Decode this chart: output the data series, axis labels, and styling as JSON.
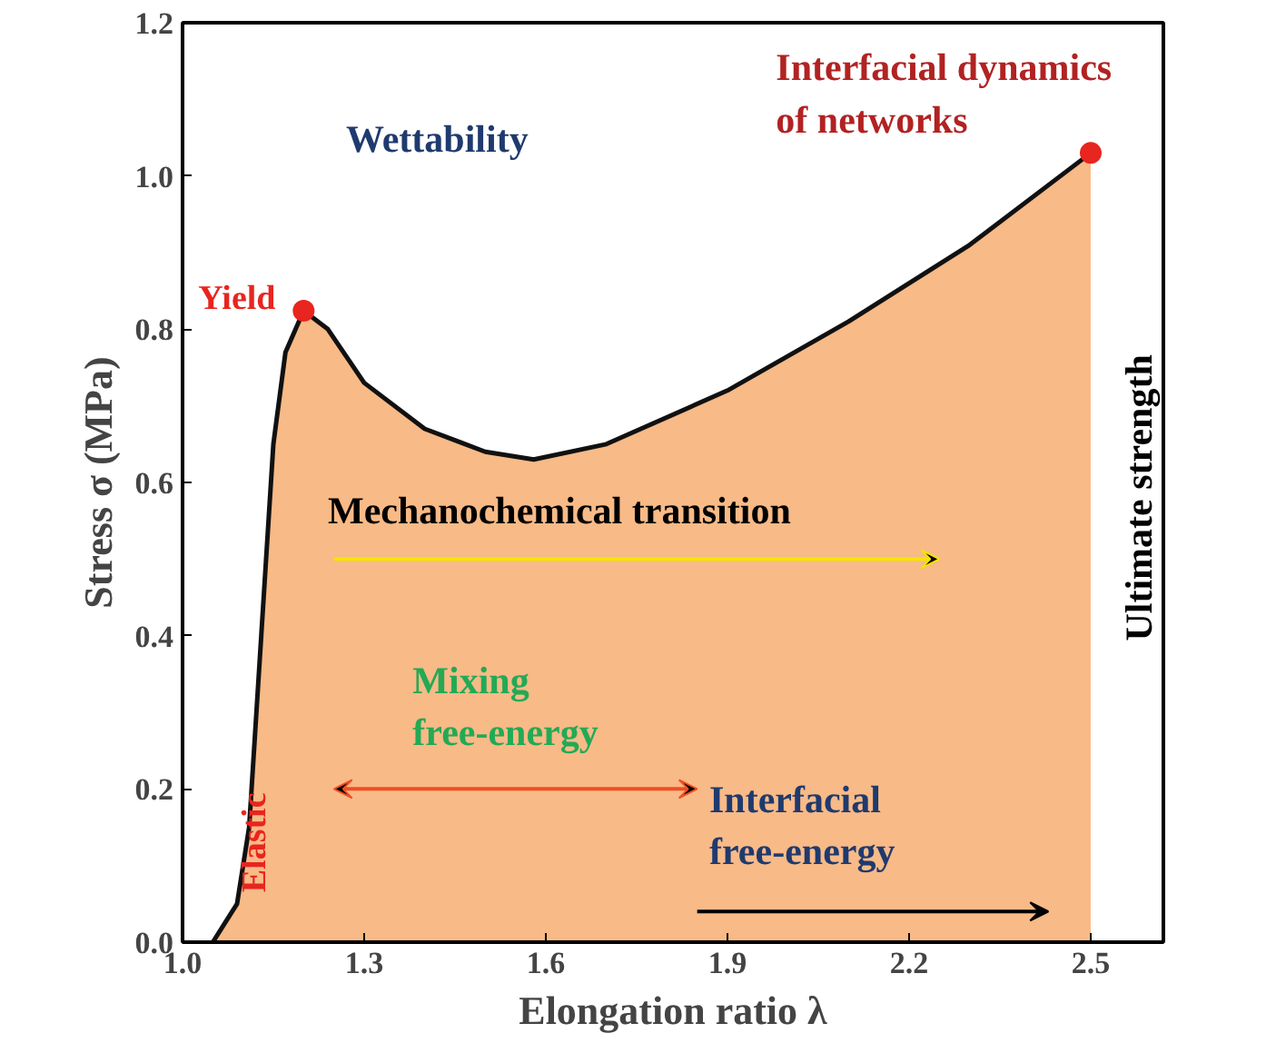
{
  "chart_data": {
    "type": "area",
    "xlabel": "Elongation ratio λ",
    "ylabel": "Stress σ (MPa)",
    "xlim": [
      1.0,
      2.62
    ],
    "ylim": [
      0,
      1.2
    ],
    "xticks": [
      {
        "value": 1.0,
        "label": "1.0"
      },
      1.3,
      1.6,
      1.9,
      2.2,
      2.5
    ],
    "yticks": [
      {
        "value": 0,
        "label": "0.0"
      },
      0.2,
      0.4,
      0.6,
      0.8,
      {
        "value": 1.0,
        "label": "1.0"
      },
      1.2
    ],
    "series": [
      {
        "color": "#f7b27a",
        "x": [
          1.05,
          1.09,
          1.11,
          1.13,
          1.15,
          1.17,
          1.2,
          1.24,
          1.3,
          1.4,
          1.5,
          1.58,
          1.7,
          1.9,
          2.1,
          2.3,
          2.5
        ],
        "values": [
          0,
          0.05,
          0.15,
          0.4,
          0.65,
          0.77,
          0.824,
          0.8,
          0.73,
          0.67,
          0.64,
          0.63,
          0.65,
          0.72,
          0.81,
          0.91,
          1.03
        ]
      },
      {
        "type": "scatter",
        "color": "#e8251f",
        "marker": "circle",
        "x": [
          1.2,
          2.5
        ],
        "values": [
          0.824,
          1.03
        ]
      }
    ],
    "annotations": [
      {
        "text": "Yield",
        "x": 1.2,
        "y": 0.824
      },
      "Wettability",
      "Interfacial dynamics\nof networks",
      "Mechanochemical transition",
      "Mixing\nfree-energy",
      "Elastic",
      "Interfacial\nfree-energy",
      "Ultimate strength"
    ]
  }
}
